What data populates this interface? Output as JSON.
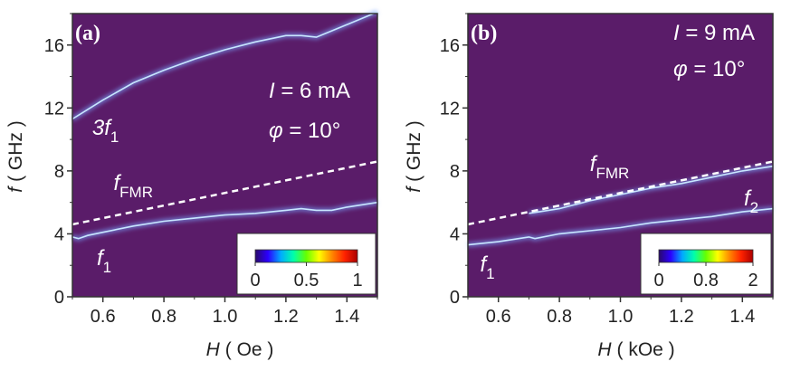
{
  "colors": {
    "background": "#5a1c69",
    "ridge": "#7aa6ff",
    "ridge_core": "#c8e6ff",
    "fmr_line": "#ffffff",
    "colormap": [
      "#2a0a6a",
      "#2b00ff",
      "#00aaff",
      "#00ffaa",
      "#66ff00",
      "#ffff00",
      "#ff8800",
      "#ff2200",
      "#aa0000"
    ]
  },
  "chart_data": [
    {
      "type": "heatmap",
      "panel_label": "(a)",
      "xlabel_symbol": "H",
      "xlabel_unit": "( Oe )",
      "ylabel_symbol": "f",
      "ylabel_unit": "( GHz )",
      "xlim": [
        0.5,
        1.5
      ],
      "ylim": [
        0,
        18
      ],
      "xticks": [
        0.6,
        0.8,
        1.0,
        1.2,
        1.4
      ],
      "xtick_labels": [
        "0.6",
        "0.8",
        "1.0",
        "1.2",
        "1.4"
      ],
      "yticks": [
        0,
        4,
        8,
        12,
        16
      ],
      "ytick_labels": [
        "0",
        "4",
        "8",
        "12",
        "16"
      ],
      "annotations": {
        "current": "I = 6 mA",
        "current_symbol": "I",
        "current_value": " = 6 mA",
        "angle_symbol": "φ",
        "angle_value": " = 10°"
      },
      "series": [
        {
          "name": "3f1",
          "x": [
            0.5,
            0.6,
            0.7,
            0.8,
            0.9,
            1.0,
            1.1,
            1.2,
            1.25,
            1.3,
            1.35,
            1.4,
            1.5
          ],
          "y": [
            11.3,
            12.5,
            13.6,
            14.4,
            15.1,
            15.7,
            16.2,
            16.6,
            16.6,
            16.5,
            16.9,
            17.3,
            18.1
          ]
        },
        {
          "name": "f1",
          "x": [
            0.5,
            0.52,
            0.55,
            0.6,
            0.7,
            0.8,
            0.9,
            1.0,
            1.1,
            1.2,
            1.25,
            1.3,
            1.35,
            1.4,
            1.5
          ],
          "y": [
            3.8,
            3.7,
            3.9,
            4.1,
            4.5,
            4.8,
            5.0,
            5.2,
            5.3,
            5.5,
            5.6,
            5.5,
            5.5,
            5.7,
            6.0
          ]
        },
        {
          "name": "fFMR",
          "style": "dashed",
          "x": [
            0.5,
            1.5
          ],
          "y": [
            4.6,
            8.6
          ]
        }
      ],
      "labels": [
        {
          "base": "3f",
          "sub": "1",
          "x": 0.565,
          "y": 10.3
        },
        {
          "base": "f",
          "sub": "FMR",
          "x": 0.635,
          "y": 6.8
        },
        {
          "base": "f",
          "sub": "1",
          "x": 0.58,
          "y": 2.0
        }
      ],
      "colorbar": {
        "ticks": [
          "0",
          "0.5",
          "1"
        ],
        "range": [
          0,
          1
        ]
      }
    },
    {
      "type": "heatmap",
      "panel_label": "(b)",
      "xlabel_symbol": "H",
      "xlabel_unit": "( kOe )",
      "ylabel_symbol": "f",
      "ylabel_unit": "( GHz )",
      "xlim": [
        0.5,
        1.5
      ],
      "ylim": [
        0,
        18
      ],
      "xticks": [
        0.6,
        0.8,
        1.0,
        1.2,
        1.4
      ],
      "xtick_labels": [
        "0.6",
        "0.8",
        "1.0",
        "1.2",
        "1.4"
      ],
      "yticks": [
        0,
        4,
        8,
        12,
        16
      ],
      "ytick_labels": [
        "0",
        "4",
        "8",
        "12",
        "16"
      ],
      "annotations": {
        "current": "I = 9 mA",
        "current_symbol": "I",
        "current_value": " = 9 mA",
        "angle_symbol": "φ",
        "angle_value": " = 10°"
      },
      "series": [
        {
          "name": "f1",
          "x": [
            0.5,
            0.6,
            0.7,
            0.72,
            0.8,
            0.9,
            1.0,
            1.1,
            1.2,
            1.3,
            1.4,
            1.5
          ],
          "y": [
            3.3,
            3.5,
            3.8,
            3.7,
            4.0,
            4.2,
            4.4,
            4.7,
            4.9,
            5.1,
            5.4,
            5.6
          ]
        },
        {
          "name": "f2",
          "x": [
            0.7,
            0.8,
            0.9,
            1.0,
            1.1,
            1.2,
            1.3,
            1.4,
            1.5
          ],
          "y": [
            5.3,
            5.6,
            6.1,
            6.5,
            6.9,
            7.2,
            7.6,
            8.0,
            8.3
          ]
        },
        {
          "name": "fFMR",
          "style": "dashed",
          "x": [
            0.5,
            1.5
          ],
          "y": [
            4.6,
            8.6
          ]
        }
      ],
      "labels": [
        {
          "base": "f",
          "sub": "FMR",
          "x": 0.9,
          "y": 8.0
        },
        {
          "base": "f",
          "sub": "2",
          "x": 1.405,
          "y": 5.8
        },
        {
          "base": "f",
          "sub": "1",
          "x": 0.54,
          "y": 1.6
        }
      ],
      "colorbar": {
        "ticks": [
          "0",
          "0.8",
          "2"
        ],
        "range": [
          0,
          2
        ]
      }
    }
  ]
}
